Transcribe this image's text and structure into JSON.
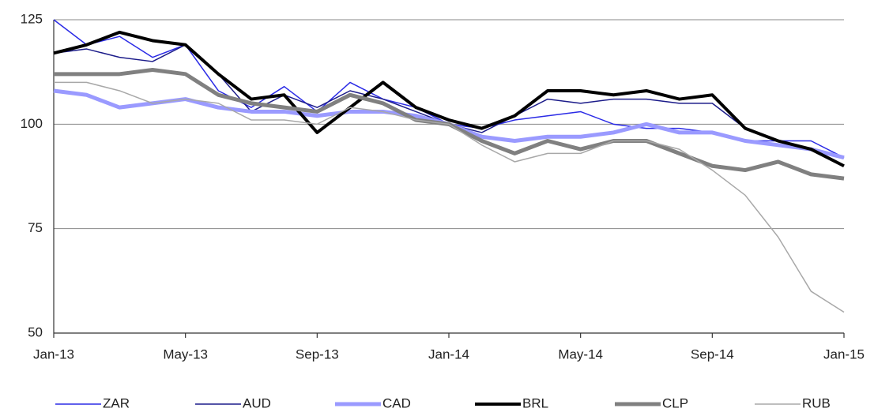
{
  "chart_data": {
    "type": "line",
    "categories": [
      "Jan-13",
      null,
      null,
      null,
      "May-13",
      null,
      null,
      null,
      "Sep-13",
      null,
      null,
      null,
      "Jan-14",
      null,
      null,
      null,
      "May-14",
      null,
      null,
      null,
      "Sep-14",
      null,
      null,
      null,
      "Jan-15"
    ],
    "ylim": [
      50,
      125
    ],
    "yticks": [
      50,
      75,
      100,
      125
    ],
    "grid": true,
    "legend": "bottom",
    "series": [
      {
        "name": "ZAR",
        "color": "#2b2be6",
        "width": 1.5,
        "values": [
          125,
          119,
          121,
          116,
          119,
          108,
          104,
          109,
          103,
          110,
          106,
          104,
          100,
          99,
          101,
          102,
          103,
          100,
          99,
          99,
          98,
          96,
          96,
          96,
          92
        ]
      },
      {
        "name": "AUD",
        "color": "#1c1c8a",
        "width": 1.5,
        "values": [
          117,
          118,
          116,
          115,
          119,
          112,
          103,
          107,
          104,
          108,
          106,
          103,
          100,
          98,
          102,
          106,
          105,
          106,
          106,
          105,
          105,
          99,
          96,
          94,
          92
        ]
      },
      {
        "name": "CAD",
        "color": "#9a9aff",
        "width": 5,
        "values": [
          108,
          107,
          104,
          105,
          106,
          104,
          103,
          103,
          102,
          103,
          103,
          102,
          100,
          97,
          96,
          97,
          97,
          98,
          100,
          98,
          98,
          96,
          95,
          94,
          92
        ]
      },
      {
        "name": "BRL",
        "color": "#000000",
        "width": 4,
        "values": [
          117,
          119,
          122,
          120,
          119,
          112,
          106,
          107,
          98,
          104,
          110,
          104,
          101,
          99,
          102,
          108,
          108,
          107,
          108,
          106,
          107,
          99,
          96,
          94,
          90
        ]
      },
      {
        "name": "CLP",
        "color": "#808080",
        "width": 5,
        "values": [
          112,
          112,
          112,
          113,
          112,
          107,
          105,
          104,
          103,
          107,
          105,
          101,
          100,
          96,
          93,
          96,
          94,
          96,
          96,
          93,
          90,
          89,
          91,
          88,
          87
        ]
      },
      {
        "name": "RUB",
        "color": "#a8a8a8",
        "width": 1.5,
        "values": [
          110,
          110,
          108,
          105,
          106,
          105,
          101,
          101,
          100,
          104,
          103,
          101,
          100,
          95,
          91,
          93,
          93,
          96,
          96,
          94,
          89,
          83,
          73,
          60,
          55
        ]
      }
    ]
  }
}
